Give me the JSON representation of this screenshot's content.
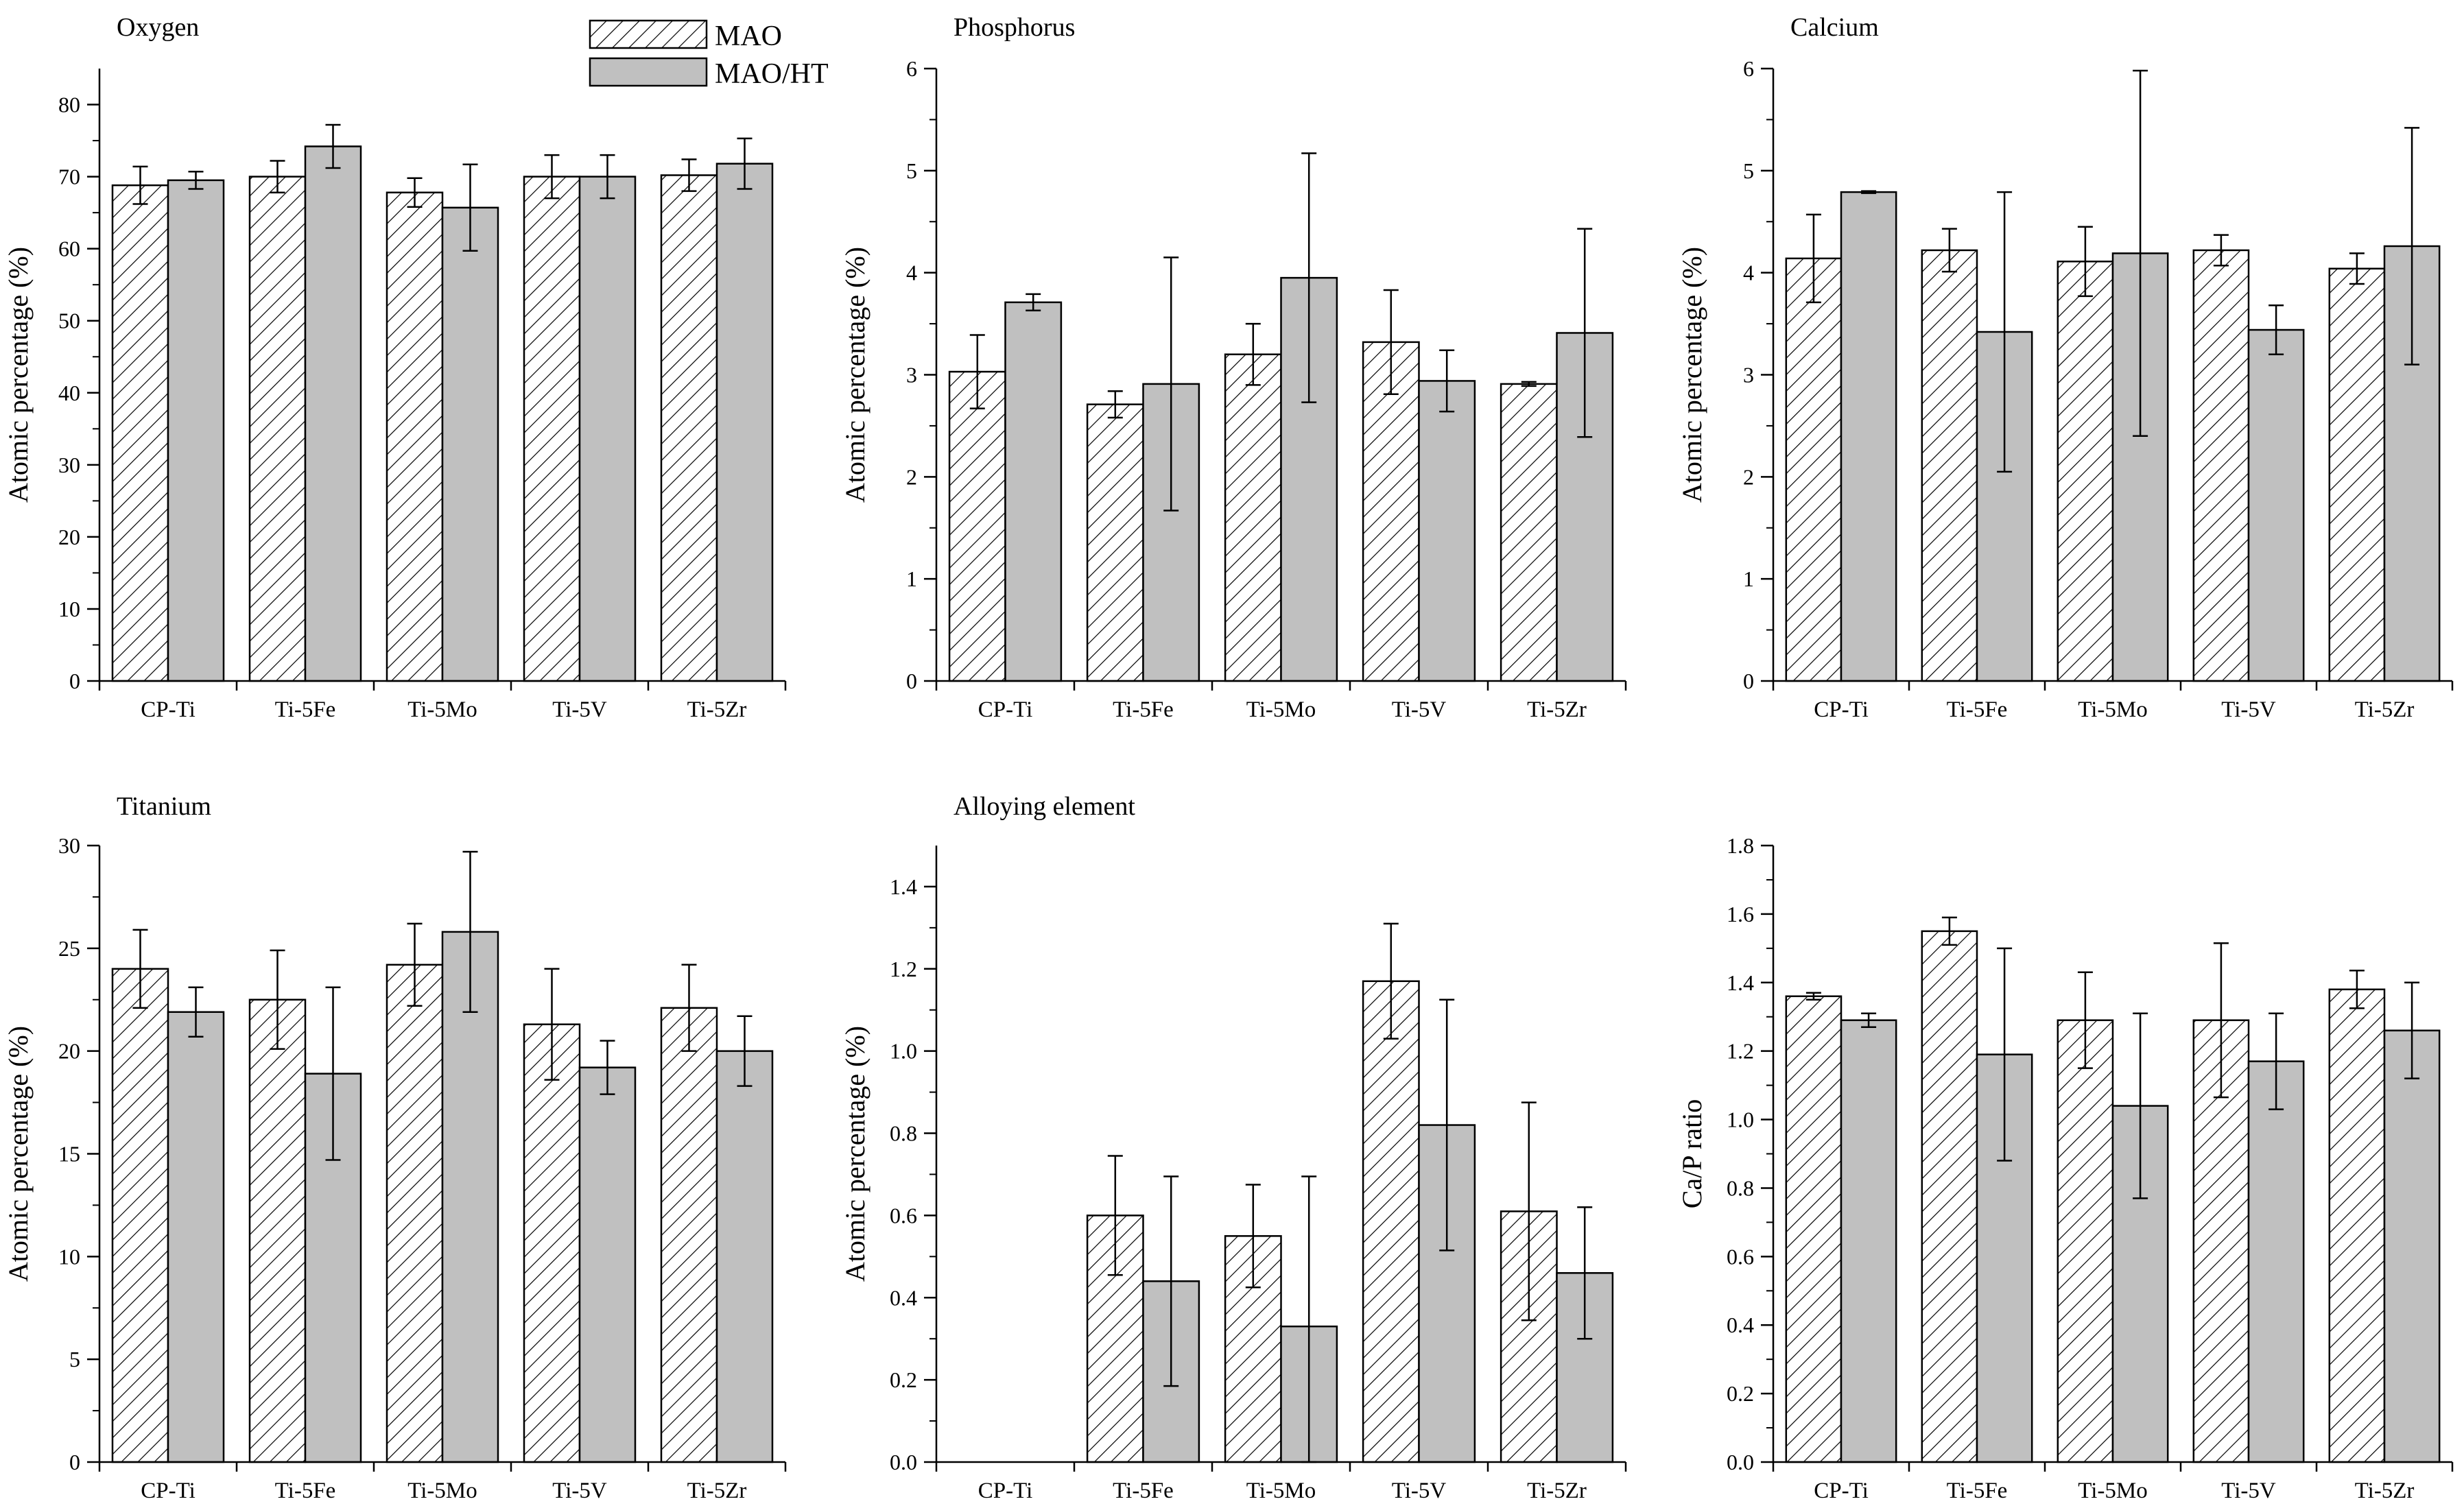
{
  "legend": {
    "placement": "top-left of first panel",
    "items": [
      {
        "label": "MAO",
        "pattern": "hatch"
      },
      {
        "label": "MAO/HT",
        "fill": "#c0c0c0"
      }
    ]
  },
  "colors": {
    "mao_fill": "#ffffff",
    "mao_hatch": "#000000",
    "ht_fill": "#c0c0c0",
    "axis": "#000000"
  },
  "chart_data": [
    {
      "type": "bar",
      "title": "Oxygen",
      "ylabel": "Atomic percentage (%)",
      "categories": [
        "CP-Ti",
        "Ti-5Fe",
        "Ti-5Mo",
        "Ti-5V",
        "Ti-5Zr"
      ],
      "ylim": [
        0,
        85
      ],
      "yticks": [
        0,
        10,
        20,
        30,
        40,
        50,
        60,
        70,
        80
      ],
      "ytick_labels": [
        "0",
        "10",
        "20",
        "30",
        "40",
        "50",
        "60",
        "70",
        "80"
      ],
      "series": [
        {
          "name": "MAO",
          "values": [
            68.8,
            70.0,
            67.8,
            70.0,
            70.2
          ],
          "errors": [
            2.6,
            2.2,
            2.0,
            3.0,
            2.2
          ]
        },
        {
          "name": "MAO/HT",
          "values": [
            69.5,
            74.2,
            65.7,
            70.0,
            71.8
          ],
          "errors": [
            1.2,
            3.0,
            6.0,
            3.0,
            3.5
          ]
        }
      ]
    },
    {
      "type": "bar",
      "title": "Phosphorus",
      "ylabel": "Atomic percentage (%)",
      "categories": [
        "CP-Ti",
        "Ti-5Fe",
        "Ti-5Mo",
        "Ti-5V",
        "Ti-5Zr"
      ],
      "ylim": [
        0,
        6
      ],
      "yticks": [
        0,
        1,
        2,
        3,
        4,
        5,
        6
      ],
      "ytick_labels": [
        "0",
        "1",
        "2",
        "3",
        "4",
        "5",
        "6"
      ],
      "series": [
        {
          "name": "MAO",
          "values": [
            3.03,
            2.71,
            3.2,
            3.32,
            2.91
          ],
          "errors": [
            0.36,
            0.13,
            0.3,
            0.51,
            0.02
          ]
        },
        {
          "name": "MAO/HT",
          "values": [
            3.71,
            2.91,
            3.95,
            2.94,
            3.41
          ],
          "errors": [
            0.08,
            1.24,
            1.22,
            0.3,
            1.02
          ]
        }
      ]
    },
    {
      "type": "bar",
      "title": "Calcium",
      "ylabel": "Atomic percentage (%)",
      "categories": [
        "CP-Ti",
        "Ti-5Fe",
        "Ti-5Mo",
        "Ti-5V",
        "Ti-5Zr"
      ],
      "ylim": [
        0,
        6
      ],
      "yticks": [
        0,
        1,
        2,
        3,
        4,
        5,
        6
      ],
      "ytick_labels": [
        "0",
        "1",
        "2",
        "3",
        "4",
        "5",
        "6"
      ],
      "series": [
        {
          "name": "MAO",
          "values": [
            4.14,
            4.22,
            4.11,
            4.22,
            4.04
          ],
          "errors": [
            0.43,
            0.21,
            0.34,
            0.15,
            0.15
          ]
        },
        {
          "name": "MAO/HT",
          "values": [
            4.79,
            3.42,
            4.19,
            3.44,
            4.26
          ],
          "errors": [
            0.01,
            1.37,
            1.79,
            0.24,
            1.16
          ]
        }
      ]
    },
    {
      "type": "bar",
      "title": "Titanium",
      "ylabel": "Atomic percentage (%)",
      "categories": [
        "CP-Ti",
        "Ti-5Fe",
        "Ti-5Mo",
        "Ti-5V",
        "Ti-5Zr"
      ],
      "ylim": [
        0,
        30
      ],
      "yticks": [
        0,
        5,
        10,
        15,
        20,
        25,
        30
      ],
      "ytick_labels": [
        "0",
        "5",
        "10",
        "15",
        "20",
        "25",
        "30"
      ],
      "series": [
        {
          "name": "MAO",
          "values": [
            24.0,
            22.5,
            24.2,
            21.3,
            22.1
          ],
          "errors": [
            1.9,
            2.4,
            2.0,
            2.7,
            2.1
          ]
        },
        {
          "name": "MAO/HT",
          "values": [
            21.9,
            18.9,
            25.8,
            19.2,
            20.0
          ],
          "errors": [
            1.2,
            4.2,
            3.9,
            1.3,
            1.7
          ]
        }
      ]
    },
    {
      "type": "bar",
      "title": "Alloying element",
      "ylabel": "Atomic percentage (%)",
      "categories": [
        "CP-Ti",
        "Ti-5Fe",
        "Ti-5Mo",
        "Ti-5V",
        "Ti-5Zr"
      ],
      "ylim": [
        0,
        1.5
      ],
      "yticks": [
        0,
        0.2,
        0.4,
        0.6,
        0.8,
        1.0,
        1.2,
        1.4
      ],
      "ytick_labels": [
        "0.0",
        "0.2",
        "0.4",
        "0.6",
        "0.8",
        "1.0",
        "1.2",
        "1.4"
      ],
      "series": [
        {
          "name": "MAO",
          "values": [
            0,
            0.6,
            0.55,
            1.17,
            0.61
          ],
          "errors": [
            0,
            0.145,
            0.125,
            0.14,
            0.265
          ]
        },
        {
          "name": "MAO/HT",
          "values": [
            0,
            0.44,
            0.33,
            0.82,
            0.46
          ],
          "errors": [
            0,
            0.255,
            0.365,
            0.305,
            0.16
          ]
        }
      ]
    },
    {
      "type": "bar",
      "title": "",
      "ylabel": "Ca/P ratio",
      "categories": [
        "CP-Ti",
        "Ti-5Fe",
        "Ti-5Mo",
        "Ti-5V",
        "Ti-5Zr"
      ],
      "ylim": [
        0,
        1.8
      ],
      "yticks": [
        0,
        0.2,
        0.4,
        0.6,
        0.8,
        1.0,
        1.2,
        1.4,
        1.6,
        1.8
      ],
      "ytick_labels": [
        "0.0",
        "0.2",
        "0.4",
        "0.6",
        "0.8",
        "1.0",
        "1.2",
        "1.4",
        "1.6",
        "1.8"
      ],
      "series": [
        {
          "name": "MAO",
          "values": [
            1.36,
            1.55,
            1.29,
            1.29,
            1.38
          ],
          "errors": [
            0.01,
            0.04,
            0.14,
            0.225,
            0.055
          ]
        },
        {
          "name": "MAO/HT",
          "values": [
            1.29,
            1.19,
            1.04,
            1.17,
            1.26
          ],
          "errors": [
            0.02,
            0.31,
            0.27,
            0.14,
            0.14
          ]
        }
      ]
    }
  ]
}
